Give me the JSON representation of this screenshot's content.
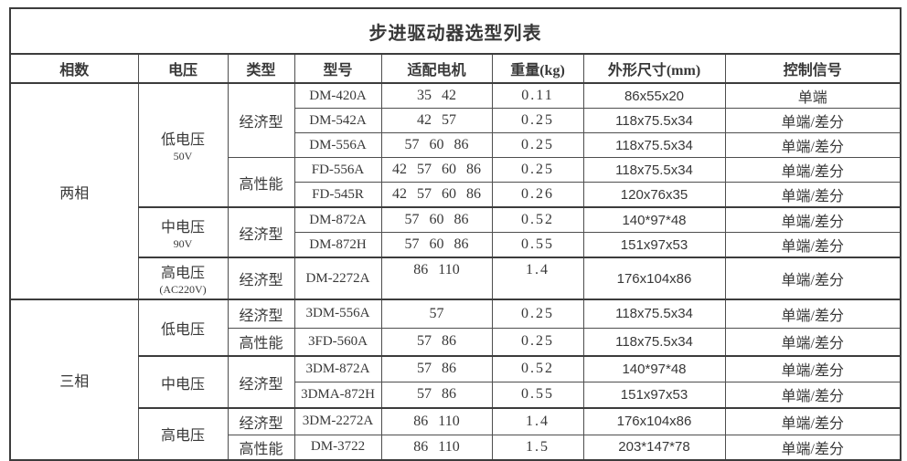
{
  "title": "步进驱动器选型列表",
  "headers": [
    "相数",
    "电压",
    "类型",
    "型号",
    "适配电机",
    "重量(kg)",
    "外形尺寸(mm)",
    "控制信号"
  ],
  "table": {
    "phases": [
      {
        "phase": "两相",
        "voltages": [
          {
            "voltage": "低电压",
            "voltage_note": "50V",
            "types": [
              {
                "type": "经济型",
                "models": [
                  {
                    "model": "DM-420A",
                    "motors": "35 42",
                    "weight": "0.11",
                    "size": "86x55x20",
                    "signal": "单端"
                  },
                  {
                    "model": "DM-542A",
                    "motors": "42 57",
                    "weight": "0.25",
                    "size": "118x75.5x34",
                    "signal": "单端/差分"
                  },
                  {
                    "model": "DM-556A",
                    "motors": "57 60 86",
                    "weight": "0.25",
                    "size": "118x75.5x34",
                    "signal": "单端/差分"
                  }
                ]
              },
              {
                "type": "高性能",
                "models": [
                  {
                    "model": "FD-556A",
                    "motors": "42 57 60 86",
                    "weight": "0.25",
                    "size": "118x75.5x34",
                    "signal": "单端/差分"
                  },
                  {
                    "model": "FD-545R",
                    "motors": "42 57 60 86",
                    "weight": "0.26",
                    "size": "120x76x35",
                    "signal": "单端/差分"
                  }
                ]
              }
            ]
          },
          {
            "voltage": "中电压",
            "voltage_note": "90V",
            "types": [
              {
                "type": "经济型",
                "models": [
                  {
                    "model": "DM-872A",
                    "motors": "57 60 86",
                    "weight": "0.52",
                    "size": "140*97*48",
                    "signal": "单端/差分"
                  },
                  {
                    "model": "DM-872H",
                    "motors": "57 60 86",
                    "weight": "0.55",
                    "size": "151x97x53",
                    "signal": "单端/差分"
                  }
                ]
              }
            ]
          },
          {
            "voltage": "高电压",
            "voltage_note": "(AC220V)",
            "types": [
              {
                "type": "经济型",
                "models": [
                  {
                    "model": "DM-2272A",
                    "motors": "86 110",
                    "weight": "1.4",
                    "size": "176x104x86",
                    "signal": "单端/差分"
                  }
                ]
              }
            ]
          }
        ]
      },
      {
        "phase": "三相",
        "voltages": [
          {
            "voltage": "低电压",
            "voltage_note": "",
            "types": [
              {
                "type": "经济型",
                "models": [
                  {
                    "model": "3DM-556A",
                    "motors": "57",
                    "weight": "0.25",
                    "size": "118x75.5x34",
                    "signal": "单端/差分"
                  }
                ]
              },
              {
                "type": "高性能",
                "models": [
                  {
                    "model": "3FD-560A",
                    "motors": "57 86",
                    "weight": "0.25",
                    "size": "118x75.5x34",
                    "signal": "单端/差分"
                  }
                ]
              }
            ]
          },
          {
            "voltage": "中电压",
            "voltage_note": "",
            "types": [
              {
                "type": "经济型",
                "models": [
                  {
                    "model": "3DM-872A",
                    "motors": "57 86",
                    "weight": "0.52",
                    "size": "140*97*48",
                    "signal": "单端/差分"
                  },
                  {
                    "model": "3DMA-872H",
                    "motors": "57 86",
                    "weight": "0.55",
                    "size": "151x97x53",
                    "signal": "单端/差分"
                  }
                ]
              }
            ]
          },
          {
            "voltage": "高电压",
            "voltage_note": "",
            "types": [
              {
                "type": "经济型",
                "models": [
                  {
                    "model": "3DM-2272A",
                    "motors": "86 110",
                    "weight": "1.4",
                    "size": "176x104x86",
                    "signal": "单端/差分"
                  }
                ]
              },
              {
                "type": "高性能",
                "models": [
                  {
                    "model": "DM-3722",
                    "motors": "86 110",
                    "weight": "1.5",
                    "size": "203*147*78",
                    "signal": "单端/差分"
                  }
                ]
              }
            ]
          }
        ]
      }
    ]
  }
}
